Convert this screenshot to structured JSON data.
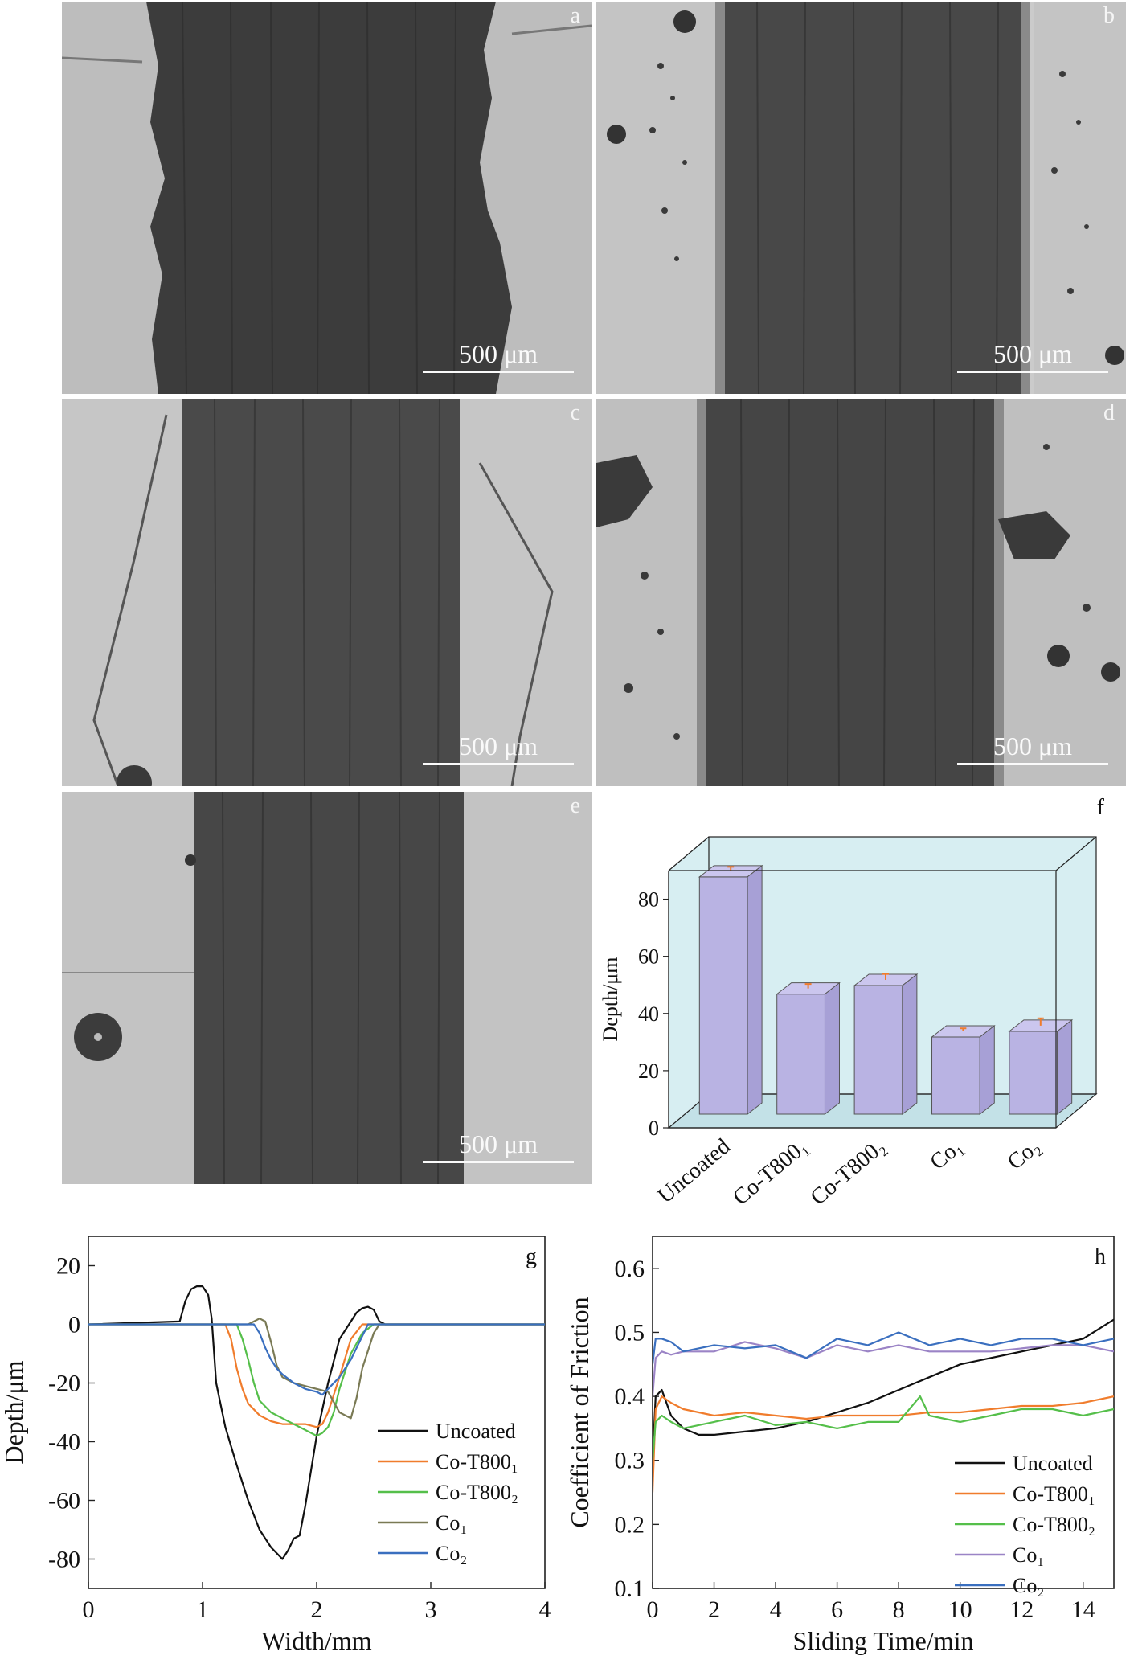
{
  "micrographs": [
    {
      "id": "a",
      "letter": "a",
      "scale_label": "500 μm"
    },
    {
      "id": "b",
      "letter": "b",
      "scale_label": "500 μm"
    },
    {
      "id": "c",
      "letter": "c",
      "scale_label": "500 μm"
    },
    {
      "id": "d",
      "letter": "d",
      "scale_label": "500 μm"
    },
    {
      "id": "e",
      "letter": "e",
      "scale_label": "500 μm"
    }
  ],
  "chart_data": [
    {
      "panel": "f",
      "type": "bar",
      "style": "3d",
      "categories": [
        "Uncoated",
        "Co-T800₁",
        "Co-T800₂",
        "Co₁",
        "Co₂"
      ],
      "values": [
        83,
        42,
        45,
        27,
        29
      ],
      "errors": [
        1,
        1,
        1.5,
        0.5,
        2
      ],
      "ylabel": "Depth/μm",
      "xlabel": "",
      "ylim": [
        0,
        90
      ],
      "yticks": [
        0,
        20,
        40,
        60,
        80
      ],
      "colors": {
        "bar_face": "#b9b3e3",
        "bar_top": "#cbc6ee",
        "bar_side": "#a7a0d6",
        "bg": "#d7eef2",
        "error": "#f07c2c"
      },
      "grid": false,
      "legend": false
    },
    {
      "panel": "g",
      "type": "line",
      "xlabel": "Width/mm",
      "ylabel": "Depth/μm",
      "xlim": [
        0,
        4
      ],
      "ylim": [
        -90,
        30
      ],
      "xticks": [
        0,
        1,
        2,
        3,
        4
      ],
      "yticks": [
        20,
        0,
        -20,
        -40,
        -60,
        -80
      ],
      "legend_position": "bottom-right",
      "series": [
        {
          "name": "Uncoated",
          "color": "#111111",
          "x": [
            0,
            0.8,
            0.85,
            0.9,
            0.95,
            1.0,
            1.05,
            1.08,
            1.12,
            1.2,
            1.3,
            1.4,
            1.5,
            1.6,
            1.7,
            1.75,
            1.8,
            1.85,
            1.9,
            1.95,
            2.0,
            2.1,
            2.2,
            2.3,
            2.35,
            2.4,
            2.45,
            2.5,
            2.55,
            2.6,
            2.7,
            4
          ],
          "y": [
            0,
            1,
            8,
            12,
            13,
            13,
            10,
            2,
            -20,
            -35,
            -48,
            -60,
            -70,
            -76,
            -80,
            -77,
            -73,
            -72,
            -62,
            -50,
            -38,
            -20,
            -5,
            1,
            4,
            5.5,
            6,
            5,
            1,
            0,
            0,
            0
          ]
        },
        {
          "name": "Co-T800₁",
          "color": "#f07c2c",
          "x": [
            0,
            1.2,
            1.25,
            1.3,
            1.35,
            1.4,
            1.5,
            1.6,
            1.7,
            1.8,
            1.9,
            2.0,
            2.05,
            2.1,
            2.2,
            2.3,
            2.4,
            2.45,
            4
          ],
          "y": [
            0,
            0,
            -5,
            -15,
            -22,
            -27,
            -31,
            -33,
            -34,
            -34,
            -34,
            -35,
            -34,
            -30,
            -18,
            -5,
            0,
            0,
            0
          ]
        },
        {
          "name": "Co-T800₂",
          "color": "#55bf4a",
          "x": [
            0,
            1.3,
            1.35,
            1.4,
            1.45,
            1.5,
            1.6,
            1.7,
            1.8,
            1.9,
            2.0,
            2.05,
            2.1,
            2.15,
            2.2,
            2.3,
            2.4,
            2.5,
            4
          ],
          "y": [
            0,
            0,
            -5,
            -12,
            -20,
            -26,
            -30,
            -32,
            -34,
            -36,
            -38,
            -37,
            -35,
            -30,
            -22,
            -10,
            -3,
            0,
            0
          ]
        },
        {
          "name": "Co₁",
          "color": "#7a7a55",
          "x": [
            0,
            1.4,
            1.45,
            1.5,
            1.55,
            1.6,
            1.65,
            1.7,
            1.8,
            1.9,
            2.0,
            2.1,
            2.2,
            2.3,
            2.35,
            2.4,
            2.5,
            2.55,
            4
          ],
          "y": [
            0,
            0,
            1,
            2,
            1,
            -6,
            -14,
            -18,
            -20,
            -21,
            -22,
            -23,
            -30,
            -32,
            -25,
            -15,
            -3,
            0,
            0
          ]
        },
        {
          "name": "Co₂",
          "color": "#3a6fbf",
          "x": [
            0,
            1.45,
            1.5,
            1.55,
            1.6,
            1.65,
            1.7,
            1.8,
            1.9,
            2.0,
            2.05,
            2.1,
            2.2,
            2.3,
            2.35,
            2.4,
            2.45,
            4
          ],
          "y": [
            0,
            0,
            -3,
            -8,
            -12,
            -15,
            -17,
            -20,
            -22,
            -23,
            -24,
            -22,
            -18,
            -12,
            -8,
            -4,
            0,
            0
          ]
        }
      ]
    },
    {
      "panel": "h",
      "type": "line",
      "xlabel": "Sliding Time/min",
      "ylabel": "Coefficient of Friction",
      "xlim": [
        0,
        15
      ],
      "ylim": [
        0.1,
        0.65
      ],
      "xticks": [
        0,
        2,
        4,
        6,
        8,
        10,
        12,
        14
      ],
      "yticks": [
        0.1,
        0.2,
        0.3,
        0.4,
        0.5,
        0.6
      ],
      "legend_position": "bottom-right",
      "series": [
        {
          "name": "Uncoated",
          "color": "#111111",
          "x": [
            0,
            0.1,
            0.3,
            0.6,
            1,
            1.5,
            2,
            3,
            4,
            5,
            6,
            7,
            8,
            9,
            10,
            11,
            12,
            13,
            14,
            15
          ],
          "y": [
            0.3,
            0.4,
            0.41,
            0.37,
            0.35,
            0.34,
            0.34,
            0.345,
            0.35,
            0.36,
            0.375,
            0.39,
            0.41,
            0.43,
            0.45,
            0.46,
            0.47,
            0.48,
            0.49,
            0.52
          ]
        },
        {
          "name": "Co-T800₁",
          "color": "#f07c2c",
          "x": [
            0,
            0.1,
            0.3,
            0.6,
            1,
            2,
            3,
            4,
            5,
            6,
            7,
            8,
            9,
            10,
            11,
            12,
            13,
            14,
            15
          ],
          "y": [
            0.25,
            0.38,
            0.4,
            0.39,
            0.38,
            0.37,
            0.375,
            0.37,
            0.365,
            0.37,
            0.37,
            0.37,
            0.375,
            0.375,
            0.38,
            0.385,
            0.385,
            0.39,
            0.4
          ]
        },
        {
          "name": "Co-T800₂",
          "color": "#55bf4a",
          "x": [
            0,
            0.1,
            0.3,
            0.6,
            1,
            2,
            3,
            4,
            5,
            6,
            7,
            8,
            8.7,
            9,
            10,
            11,
            12,
            13,
            14,
            15
          ],
          "y": [
            0.3,
            0.36,
            0.37,
            0.36,
            0.35,
            0.36,
            0.37,
            0.355,
            0.36,
            0.35,
            0.36,
            0.36,
            0.4,
            0.37,
            0.36,
            0.37,
            0.38,
            0.38,
            0.37,
            0.38
          ]
        },
        {
          "name": "Co₁",
          "color": "#9b84c6",
          "x": [
            0,
            0.1,
            0.3,
            0.6,
            1,
            2,
            3,
            4,
            5,
            6,
            7,
            8,
            9,
            10,
            11,
            12,
            13,
            14,
            15
          ],
          "y": [
            0.4,
            0.46,
            0.47,
            0.465,
            0.47,
            0.47,
            0.485,
            0.475,
            0.46,
            0.48,
            0.47,
            0.48,
            0.47,
            0.47,
            0.47,
            0.475,
            0.48,
            0.48,
            0.47
          ]
        },
        {
          "name": "Co₂",
          "color": "#3a6fbf",
          "x": [
            0,
            0.1,
            0.3,
            0.6,
            1,
            2,
            3,
            4,
            5,
            6,
            7,
            8,
            9,
            10,
            11,
            12,
            13,
            14,
            15
          ],
          "y": [
            0.45,
            0.49,
            0.49,
            0.485,
            0.47,
            0.48,
            0.475,
            0.48,
            0.46,
            0.49,
            0.48,
            0.5,
            0.48,
            0.49,
            0.48,
            0.49,
            0.49,
            0.48,
            0.49
          ]
        }
      ]
    }
  ]
}
